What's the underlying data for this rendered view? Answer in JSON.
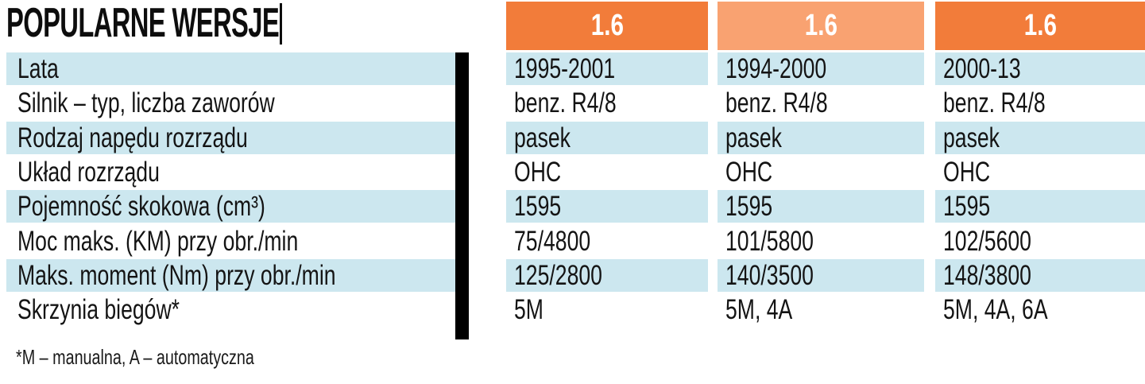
{
  "chart_data": {
    "type": "table",
    "title": "POPULARNE WERSJE",
    "columns": [
      "1.6",
      "1.6",
      "1.6"
    ],
    "rows": [
      {
        "label": "Lata",
        "values": [
          "1995-2001",
          "1994-2000",
          "2000-13"
        ]
      },
      {
        "label": "Silnik – typ, liczba zaworów",
        "values": [
          "benz. R4/8",
          "benz. R4/8",
          "benz. R4/8"
        ]
      },
      {
        "label": "Rodzaj napędu rozrządu",
        "values": [
          "pasek",
          "pasek",
          "pasek"
        ]
      },
      {
        "label": "Układ rozrządu",
        "values": [
          "OHC",
          "OHC",
          "OHC"
        ]
      },
      {
        "label": "Pojemność skokowa (cm³)",
        "values": [
          "1595",
          "1595",
          "1595"
        ]
      },
      {
        "label": "Moc maks. (KM) przy obr./min",
        "values": [
          "75/4800",
          "101/5800",
          "102/5600"
        ]
      },
      {
        "label": "Maks. moment (Nm) przy obr./min",
        "values": [
          "125/2800",
          "140/3500",
          "148/3800"
        ]
      },
      {
        "label": "Skrzynia biegów*",
        "values": [
          "5M",
          "5M, 4A",
          "5M, 4A, 6A"
        ]
      }
    ],
    "footnote": "*M – manualna, A – automatyczna",
    "layout_hints": "8 striped rows, highlight on rows 1/3/5/7, black divider bar after label column, three orange version headers (middle one lighter)"
  },
  "colors": {
    "accent_dark": "#F27C3A",
    "accent_light": "#F9A271",
    "row_highlight": "#CCE7EF",
    "divider_bar": "#000000",
    "text": "#141414",
    "header_text": "#FFFFFF"
  }
}
